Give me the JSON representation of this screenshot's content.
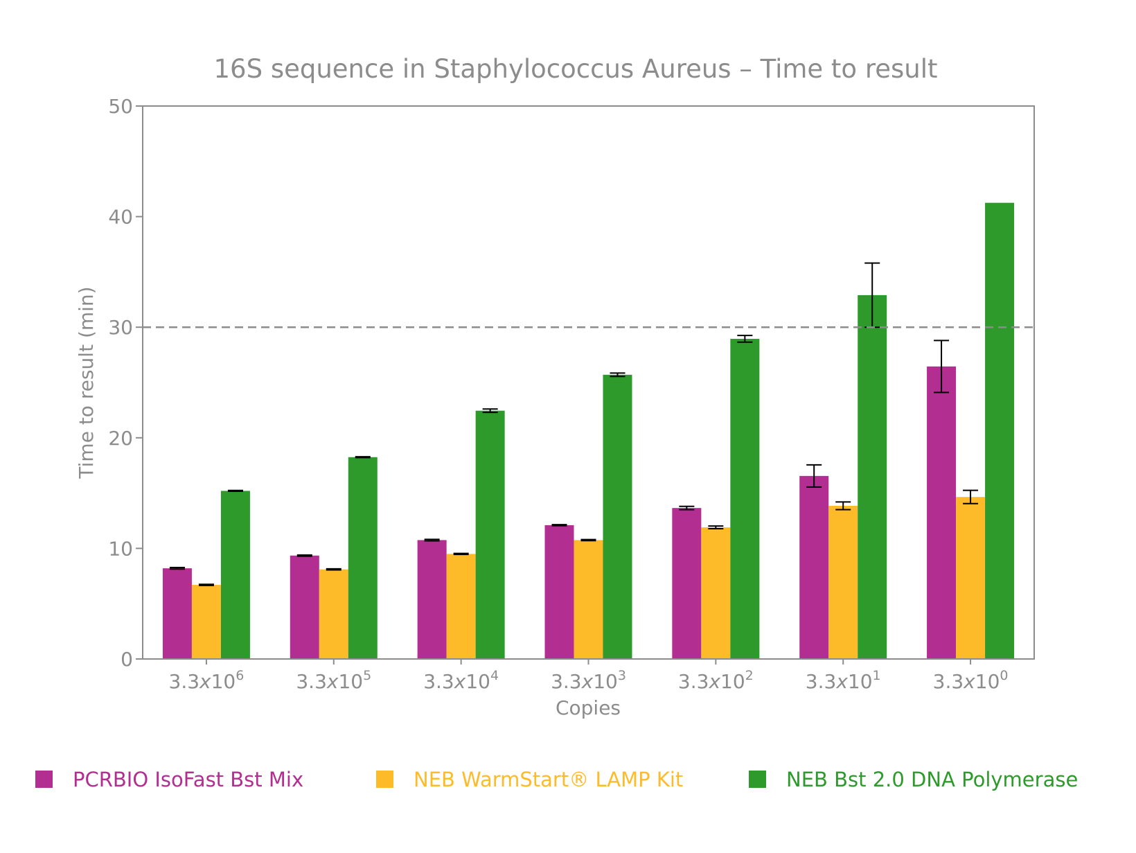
{
  "chart_data": {
    "type": "bar",
    "title": "16S sequence in Staphylococcus Aureus – Time to result",
    "xlabel": "Copies",
    "ylabel": "Time to result (min)",
    "ylim": [
      0,
      50
    ],
    "yticks": [
      "0",
      "10",
      "20",
      "30",
      "40",
      "50"
    ],
    "threshold_line": 30,
    "grid": false,
    "legend_placement": "bottom",
    "categories": [
      {
        "mantissa": "3.3",
        "times": "x",
        "base": "10",
        "exp": "6"
      },
      {
        "mantissa": "3.3",
        "times": "x",
        "base": "10",
        "exp": "5"
      },
      {
        "mantissa": "3.3",
        "times": "x",
        "base": "10",
        "exp": "4"
      },
      {
        "mantissa": "3.3",
        "times": "x",
        "base": "10",
        "exp": "3"
      },
      {
        "mantissa": "3.3",
        "times": "x",
        "base": "10",
        "exp": "2"
      },
      {
        "mantissa": "3.3",
        "times": "x",
        "base": "10",
        "exp": "1"
      },
      {
        "mantissa": "3.3",
        "times": "x",
        "base": "10",
        "exp": "0"
      }
    ],
    "series": [
      {
        "name": "PCRBIO IsoFast Bst Mix",
        "color": "#b22e91",
        "values": [
          8.2,
          9.35,
          10.75,
          12.1,
          13.65,
          16.55,
          26.45
        ],
        "errors": [
          0.07,
          0.05,
          0.07,
          0.05,
          0.15,
          1.0,
          2.35
        ]
      },
      {
        "name": "NEB WarmStart® LAMP Kit",
        "color": "#fdbb2a",
        "values": [
          6.7,
          8.1,
          9.5,
          10.75,
          11.9,
          13.85,
          14.65
        ],
        "errors": [
          0.05,
          0.05,
          0.05,
          0.05,
          0.12,
          0.35,
          0.6
        ]
      },
      {
        "name": "NEB Bst 2.0 DNA Polymerase",
        "color": "#2d9a2b",
        "values": [
          15.2,
          18.25,
          22.45,
          25.7,
          28.95,
          32.9,
          41.25
        ],
        "errors": [
          0.04,
          0.04,
          0.15,
          0.15,
          0.3,
          2.9,
          0
        ]
      }
    ]
  }
}
